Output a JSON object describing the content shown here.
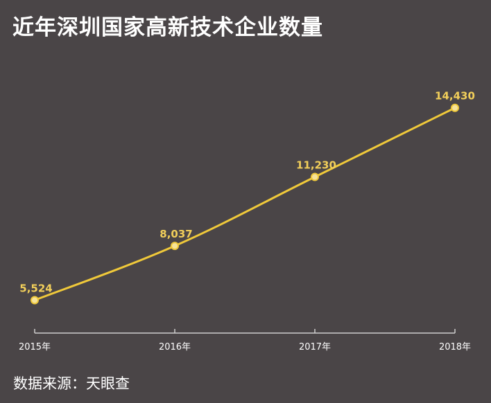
{
  "chart_data": {
    "type": "line",
    "title": "近年深圳国家高新技术企业数量",
    "categories": [
      "2015年",
      "2016年",
      "2017年",
      "2018年"
    ],
    "values": [
      5524,
      8037,
      11230,
      14430
    ],
    "value_labels": [
      "5,524",
      "8,037",
      "11,230",
      "14,430"
    ],
    "xlabel": "",
    "ylabel": "",
    "ylim": [
      4000,
      17500
    ],
    "grid": false,
    "source": "数据来源：天眼查"
  },
  "colors": {
    "background": "#4a4547",
    "line": "#f0c93a",
    "label": "#f2cf5a",
    "axis": "#cfcfcf",
    "text": "#ffffff"
  }
}
